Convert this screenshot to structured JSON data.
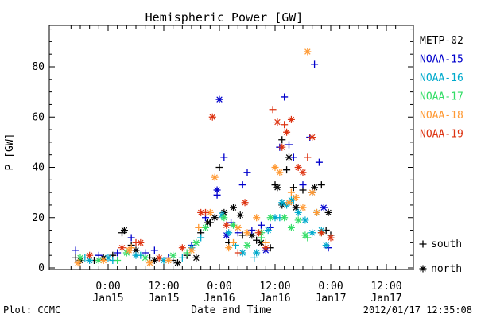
{
  "chart_data": {
    "type": "scatter",
    "title": "Hemispheric Power [GW]",
    "xlabel": "Date and Time",
    "ylabel": "P [GW]",
    "ylim": [
      0,
      95
    ],
    "xlim": [
      "2012-01-14 16:00",
      "2012-01-17 13:00"
    ],
    "x_ticks": [
      {
        "x": "2012-01-15 00:00",
        "time": "0:00",
        "date": "Jan15"
      },
      {
        "x": "2012-01-15 12:00",
        "time": "12:00",
        "date": "Jan15"
      },
      {
        "x": "2012-01-16 00:00",
        "time": "0:00",
        "date": "Jan16"
      },
      {
        "x": "2012-01-16 12:00",
        "time": "12:00",
        "date": "Jan16"
      },
      {
        "x": "2012-01-17 00:00",
        "time": "0:00",
        "date": "Jan17"
      },
      {
        "x": "2012-01-17 12:00",
        "time": "12:00",
        "date": "Jan17"
      }
    ],
    "y_ticks": [
      0,
      20,
      40,
      60,
      80
    ],
    "legend_position": "right",
    "marker_legend": [
      {
        "marker": "+",
        "label": "south"
      },
      {
        "marker": "*",
        "label": "north"
      }
    ],
    "series": [
      {
        "name": "METP-02",
        "color": "#000000",
        "south": [
          [
            "2012-01-14 17:00",
            4
          ],
          [
            "2012-01-14 21:00",
            3
          ],
          [
            "2012-01-15 01:00",
            5
          ],
          [
            "2012-01-15 03:00",
            14
          ],
          [
            "2012-01-15 05:00",
            9
          ],
          [
            "2012-01-15 09:00",
            4
          ],
          [
            "2012-01-15 14:00",
            3
          ],
          [
            "2012-01-15 17:00",
            5
          ],
          [
            "2012-01-15 20:00",
            14
          ],
          [
            "2012-01-15 22:00",
            18
          ],
          [
            "2012-01-16 00:00",
            40
          ],
          [
            "2012-01-16 02:00",
            10
          ],
          [
            "2012-01-16 05:00",
            13
          ],
          [
            "2012-01-16 08:00",
            11
          ],
          [
            "2012-01-16 11:00",
            8
          ],
          [
            "2012-01-16 12:00",
            33
          ],
          [
            "2012-01-16 13:30",
            51
          ],
          [
            "2012-01-16 14:30",
            39
          ],
          [
            "2012-01-16 16:00",
            32
          ],
          [
            "2012-01-16 18:00",
            31
          ],
          [
            "2012-01-16 20:00",
            30
          ],
          [
            "2012-01-16 22:00",
            33
          ],
          [
            "2012-01-16 23:00",
            15
          ],
          [
            "2012-01-17 00:00",
            13
          ]
        ],
        "north": [
          [
            "2012-01-14 18:00",
            3
          ],
          [
            "2012-01-14 23:00",
            4
          ],
          [
            "2012-01-15 03:30",
            15
          ],
          [
            "2012-01-15 06:00",
            7
          ],
          [
            "2012-01-15 10:00",
            3
          ],
          [
            "2012-01-15 15:00",
            2
          ],
          [
            "2012-01-15 19:00",
            4
          ],
          [
            "2012-01-15 21:30",
            18
          ],
          [
            "2012-01-15 23:00",
            20
          ],
          [
            "2012-01-16 01:00",
            22
          ],
          [
            "2012-01-16 03:00",
            24
          ],
          [
            "2012-01-16 04:30",
            21
          ],
          [
            "2012-01-16 07:00",
            13
          ],
          [
            "2012-01-16 09:00",
            10
          ],
          [
            "2012-01-16 12:30",
            32
          ],
          [
            "2012-01-16 13:30",
            25
          ],
          [
            "2012-01-16 15:00",
            44
          ],
          [
            "2012-01-16 16:30",
            24
          ],
          [
            "2012-01-16 20:30",
            32
          ],
          [
            "2012-01-16 23:30",
            22
          ]
        ]
      },
      {
        "name": "NOAA-15",
        "color": "#0000cc",
        "south": [
          [
            "2012-01-14 17:00",
            7
          ],
          [
            "2012-01-14 22:00",
            5
          ],
          [
            "2012-01-15 02:00",
            6
          ],
          [
            "2012-01-15 05:00",
            12
          ],
          [
            "2012-01-15 08:00",
            6
          ],
          [
            "2012-01-15 10:00",
            7
          ],
          [
            "2012-01-15 13:00",
            4
          ],
          [
            "2012-01-15 18:00",
            9
          ],
          [
            "2012-01-15 21:00",
            20
          ],
          [
            "2012-01-15 23:30",
            29
          ],
          [
            "2012-01-16 01:00",
            44
          ],
          [
            "2012-01-16 02:30",
            18
          ],
          [
            "2012-01-16 04:00",
            14
          ],
          [
            "2012-01-16 05:00",
            33
          ],
          [
            "2012-01-16 06:00",
            38
          ],
          [
            "2012-01-16 07:00",
            15
          ],
          [
            "2012-01-16 09:00",
            17
          ],
          [
            "2012-01-16 11:00",
            16
          ],
          [
            "2012-01-16 13:00",
            48
          ],
          [
            "2012-01-16 14:00",
            68
          ],
          [
            "2012-01-16 15:00",
            49
          ],
          [
            "2012-01-16 16:00",
            44
          ],
          [
            "2012-01-16 18:00",
            33
          ],
          [
            "2012-01-16 19:30",
            52
          ],
          [
            "2012-01-16 20:30",
            81
          ],
          [
            "2012-01-16 21:30",
            42
          ],
          [
            "2012-01-16 23:30",
            8
          ]
        ],
        "north": [
          [
            "2012-01-15 23:30",
            31
          ],
          [
            "2012-01-16 00:00",
            67
          ],
          [
            "2012-01-16 01:30",
            13
          ],
          [
            "2012-01-16 10:00",
            7
          ],
          [
            "2012-01-16 22:30",
            24
          ]
        ]
      },
      {
        "name": "NOAA-16",
        "color": "#00aacc",
        "south": [
          [
            "2012-01-14 19:00",
            4
          ],
          [
            "2012-01-15 01:00",
            3
          ],
          [
            "2012-01-15 07:00",
            5
          ],
          [
            "2012-01-15 16:00",
            4
          ],
          [
            "2012-01-15 20:00",
            12
          ],
          [
            "2012-01-16 03:30",
            9
          ],
          [
            "2012-01-16 07:30",
            4
          ],
          [
            "2012-01-16 13:00",
            20
          ],
          [
            "2012-01-16 16:00",
            27
          ]
        ],
        "north": [
          [
            "2012-01-14 20:00",
            3
          ],
          [
            "2012-01-15 00:00",
            4
          ],
          [
            "2012-01-15 06:00",
            5
          ],
          [
            "2012-01-15 12:00",
            3
          ],
          [
            "2012-01-15 18:00",
            8
          ],
          [
            "2012-01-16 00:30",
            21
          ],
          [
            "2012-01-16 02:00",
            14
          ],
          [
            "2012-01-16 05:00",
            6
          ],
          [
            "2012-01-16 08:00",
            6
          ],
          [
            "2012-01-16 10:30",
            15
          ],
          [
            "2012-01-16 12:00",
            20
          ],
          [
            "2012-01-16 13:30",
            26
          ],
          [
            "2012-01-16 14:30",
            25
          ],
          [
            "2012-01-16 15:30",
            27
          ],
          [
            "2012-01-16 17:00",
            22
          ],
          [
            "2012-01-16 18:30",
            19
          ],
          [
            "2012-01-16 20:00",
            14
          ],
          [
            "2012-01-16 21:00",
            22
          ],
          [
            "2012-01-16 22:00",
            15
          ],
          [
            "2012-01-16 23:00",
            9
          ]
        ]
      },
      {
        "name": "NOAA-17",
        "color": "#33dd66",
        "south": [
          [
            "2012-01-15 02:00",
            3
          ],
          [
            "2012-01-15 17:00",
            6
          ],
          [
            "2012-01-16 09:00",
            12
          ],
          [
            "2012-01-16 19:00",
            12
          ]
        ],
        "north": [
          [
            "2012-01-14 18:00",
            4
          ],
          [
            "2012-01-14 22:00",
            3
          ],
          [
            "2012-01-15 04:00",
            6
          ],
          [
            "2012-01-15 08:00",
            4
          ],
          [
            "2012-01-15 14:00",
            5
          ],
          [
            "2012-01-15 19:00",
            10
          ],
          [
            "2012-01-15 21:00",
            16
          ],
          [
            "2012-01-16 01:00",
            20
          ],
          [
            "2012-01-16 03:00",
            17
          ],
          [
            "2012-01-16 06:00",
            9
          ],
          [
            "2012-01-16 09:00",
            14
          ],
          [
            "2012-01-16 11:00",
            20
          ],
          [
            "2012-01-16 14:00",
            20
          ],
          [
            "2012-01-16 15:30",
            16
          ],
          [
            "2012-01-16 17:00",
            19
          ],
          [
            "2012-01-16 18:30",
            13
          ],
          [
            "2012-01-16 22:00",
            14
          ]
        ]
      },
      {
        "name": "NOAA-18",
        "color": "#ff9933",
        "south": [
          [
            "2012-01-15 05:00",
            8
          ],
          [
            "2012-01-15 19:30",
            16
          ],
          [
            "2012-01-16 03:00",
            10
          ],
          [
            "2012-01-16 10:00",
            10
          ],
          [
            "2012-01-16 15:30",
            30
          ]
        ],
        "north": [
          [
            "2012-01-14 17:30",
            2
          ],
          [
            "2012-01-14 23:00",
            3
          ],
          [
            "2012-01-15 04:30",
            7
          ],
          [
            "2012-01-15 09:00",
            2
          ],
          [
            "2012-01-15 13:00",
            3
          ],
          [
            "2012-01-15 18:00",
            7
          ],
          [
            "2012-01-15 22:00",
            22
          ],
          [
            "2012-01-15 23:00",
            36
          ],
          [
            "2012-01-16 02:00",
            8
          ],
          [
            "2012-01-16 04:00",
            16
          ],
          [
            "2012-01-16 06:00",
            14
          ],
          [
            "2012-01-16 08:00",
            20
          ],
          [
            "2012-01-16 12:00",
            40
          ],
          [
            "2012-01-16 13:00",
            38
          ],
          [
            "2012-01-16 15:00",
            26
          ],
          [
            "2012-01-16 16:30",
            28
          ],
          [
            "2012-01-16 18:00",
            24
          ],
          [
            "2012-01-16 19:00",
            86
          ],
          [
            "2012-01-16 20:00",
            30
          ],
          [
            "2012-01-16 21:00",
            22
          ]
        ]
      },
      {
        "name": "NOAA-19",
        "color": "#dd3311",
        "south": [
          [
            "2012-01-15 06:00",
            10
          ],
          [
            "2012-01-15 21:00",
            22
          ],
          [
            "2012-01-16 04:00",
            6
          ],
          [
            "2012-01-16 11:30",
            63
          ],
          [
            "2012-01-16 14:00",
            57
          ],
          [
            "2012-01-16 19:00",
            44
          ]
        ],
        "north": [
          [
            "2012-01-14 20:00",
            5
          ],
          [
            "2012-01-15 03:00",
            8
          ],
          [
            "2012-01-15 07:00",
            10
          ],
          [
            "2012-01-15 11:00",
            4
          ],
          [
            "2012-01-15 16:00",
            8
          ],
          [
            "2012-01-15 20:00",
            22
          ],
          [
            "2012-01-15 22:30",
            60
          ],
          [
            "2012-01-16 01:30",
            17
          ],
          [
            "2012-01-16 05:30",
            26
          ],
          [
            "2012-01-16 08:30",
            14
          ],
          [
            "2012-01-16 10:00",
            8
          ],
          [
            "2012-01-16 12:30",
            58
          ],
          [
            "2012-01-16 13:30",
            48
          ],
          [
            "2012-01-16 14:30",
            54
          ],
          [
            "2012-01-16 15:30",
            59
          ],
          [
            "2012-01-16 17:00",
            40
          ],
          [
            "2012-01-16 18:00",
            38
          ],
          [
            "2012-01-16 20:00",
            52
          ],
          [
            "2012-01-16 22:00",
            14
          ],
          [
            "2012-01-17 00:00",
            12
          ]
        ]
      }
    ]
  },
  "footer": {
    "left": "Plot: CCMC",
    "right": "2012/01/17 12:35:08"
  }
}
